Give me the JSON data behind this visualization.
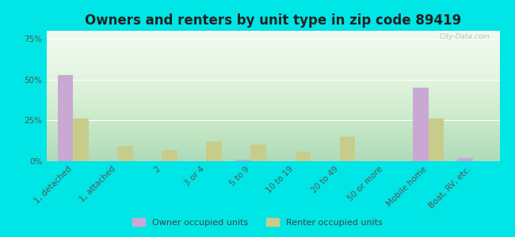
{
  "title": "Owners and renters by unit type in zip code 89419",
  "categories": [
    "1, detached",
    "1, attached",
    "2",
    "3 or 4",
    "5 to 9",
    "10 to 19",
    "20 to 49",
    "50 or more",
    "Mobile home",
    "Boat, RV, etc."
  ],
  "owner_values": [
    53,
    0,
    0,
    0,
    1,
    0,
    0,
    0,
    45,
    2
  ],
  "renter_values": [
    26,
    9,
    7,
    12,
    10,
    6,
    15,
    0,
    26,
    0
  ],
  "owner_color": "#c9a8d4",
  "renter_color": "#c8cc8a",
  "grad_top": "#c8e6c0",
  "grad_bottom": "#f0faf0",
  "outer_background": "#00e5e5",
  "grid_color": "#ffffff",
  "ylim": [
    0,
    80
  ],
  "yticks": [
    0,
    25,
    50,
    75
  ],
  "ytick_labels": [
    "0%",
    "25%",
    "50%",
    "75%"
  ],
  "legend_owner": "Owner occupied units",
  "legend_renter": "Renter occupied units",
  "title_fontsize": 12,
  "tick_fontsize": 7.5,
  "watermark": "City-Data.com"
}
